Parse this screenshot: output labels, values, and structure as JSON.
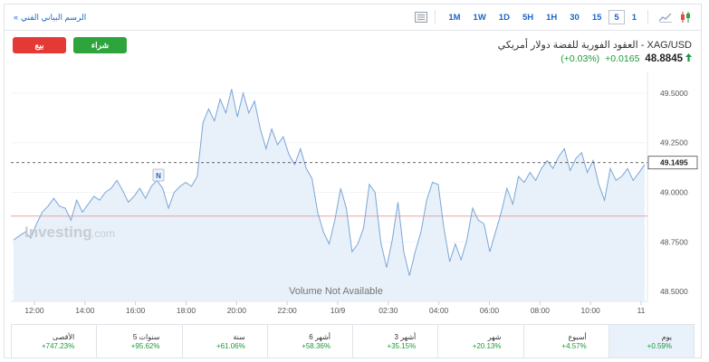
{
  "toolbar": {
    "chart_link": "الرسم البياني الفني",
    "timeframes": [
      "1M",
      "1W",
      "1D",
      "5H",
      "1H",
      "30",
      "15",
      "5",
      "1"
    ],
    "active_timeframe": "5"
  },
  "actions": {
    "sell_label": "بيع",
    "buy_label": "شراء"
  },
  "instrument": {
    "name": "XAG/USD - العقود الفورية للفضة دولار أمريكي",
    "price": "48.8845",
    "change": "+0.0165",
    "change_pct": "(+0.03%)",
    "direction": "up"
  },
  "chart_data": {
    "type": "area",
    "xlabels": [
      "12:00",
      "14:00",
      "16:00",
      "18:00",
      "20:00",
      "22:00",
      "10/9",
      "02:30",
      "04:00",
      "06:00",
      "08:00",
      "10:00",
      "11"
    ],
    "ylabels": [
      "49.5000",
      "49.2500",
      "49.0000",
      "48.7500",
      "48.5000"
    ],
    "ylim": [
      48.45,
      49.6
    ],
    "last_price_label": "49.1495",
    "reference_line": 48.88,
    "watermark": "Investing",
    "watermark_suffix": ".com",
    "volume_note": "Volume Not Available",
    "marker_label": "N",
    "series_color": "#7aa7d6",
    "fill_color": "#e8f0f9",
    "values": [
      48.76,
      48.78,
      48.8,
      48.77,
      48.84,
      48.9,
      48.93,
      48.97,
      48.93,
      48.92,
      48.86,
      48.96,
      48.9,
      48.94,
      48.98,
      48.96,
      49.0,
      49.02,
      49.06,
      49.01,
      48.95,
      48.98,
      49.02,
      48.97,
      49.03,
      49.06,
      49.02,
      48.92,
      49.0,
      49.03,
      49.05,
      49.03,
      49.08,
      49.35,
      49.42,
      49.36,
      49.47,
      49.4,
      49.52,
      49.38,
      49.5,
      49.4,
      49.46,
      49.32,
      49.22,
      49.32,
      49.24,
      49.28,
      49.19,
      49.14,
      49.22,
      49.12,
      49.07,
      48.9,
      48.8,
      48.74,
      48.86,
      49.02,
      48.92,
      48.7,
      48.74,
      48.82,
      49.04,
      49.0,
      48.75,
      48.62,
      48.76,
      48.95,
      48.7,
      48.58,
      48.7,
      48.8,
      48.96,
      49.05,
      49.04,
      48.82,
      48.65,
      48.74,
      48.66,
      48.76,
      48.92,
      48.86,
      48.84,
      48.7,
      48.8,
      48.9,
      49.02,
      48.94,
      49.08,
      49.05,
      49.1,
      49.06,
      49.12,
      49.16,
      49.12,
      49.18,
      49.22,
      49.11,
      49.17,
      49.2,
      49.1,
      49.16,
      49.04,
      48.96,
      49.12,
      49.06,
      49.08,
      49.12,
      49.06,
      49.1,
      49.14
    ]
  },
  "performance": [
    {
      "label": "يوم",
      "value": "+0.59%"
    },
    {
      "label": "أسبوع",
      "value": "+4.57%"
    },
    {
      "label": "شهر",
      "value": "+20.13%"
    },
    {
      "label": "3 أشهر",
      "value": "+35.15%"
    },
    {
      "label": "6 أشهر",
      "value": "+58.36%"
    },
    {
      "label": "سنة",
      "value": "+61.06%"
    },
    {
      "label": "5 سنوات",
      "value": "+95.62%"
    },
    {
      "label": "الأقصى",
      "value": "+747.23%"
    }
  ]
}
